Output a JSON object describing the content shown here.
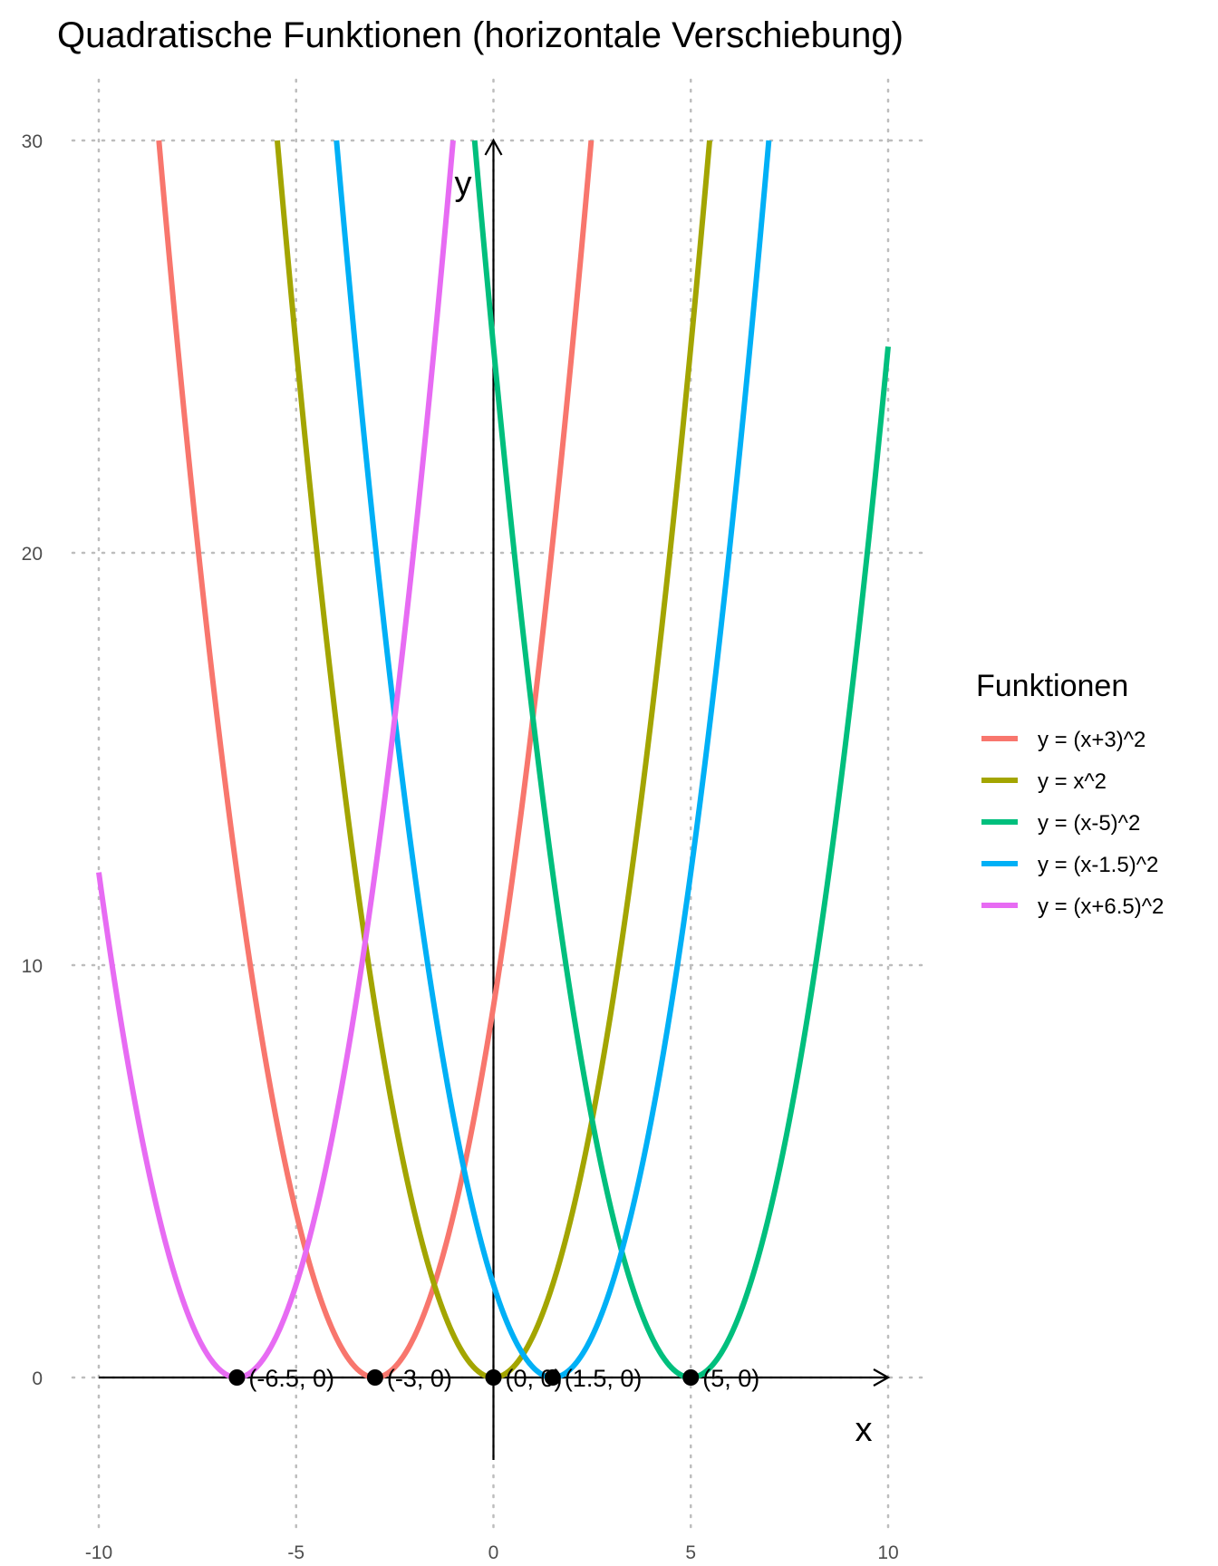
{
  "chart_data": {
    "type": "line",
    "title": "Quadratische Funktionen (horizontale Verschiebung)",
    "xlabel": "x",
    "ylabel": "y",
    "xlim": [
      -10,
      10
    ],
    "ylim": [
      -3,
      30
    ],
    "x_ticks": [
      -10,
      -5,
      0,
      5,
      10
    ],
    "y_ticks": [
      0,
      10,
      20,
      30
    ],
    "grid": "dotted",
    "legend": {
      "title": "Funktionen",
      "placement": "right"
    },
    "series": [
      {
        "name": "y = (x+3)^2",
        "shift": -3,
        "color": "#F8766D"
      },
      {
        "name": "y = x^2",
        "shift": 0,
        "color": "#A3A500"
      },
      {
        "name": "y = (x-5)^2",
        "shift": 5,
        "color": "#00BF7D"
      },
      {
        "name": "y = (x-1.5)^2",
        "shift": 1.5,
        "color": "#00B0F6"
      },
      {
        "name": "y = (x+6.5)^2",
        "shift": -6.5,
        "color": "#E76BF3"
      }
    ],
    "points": [
      {
        "x": -6.5,
        "y": 0,
        "label": "(-6.5, 0)"
      },
      {
        "x": -3,
        "y": 0,
        "label": "(-3, 0)"
      },
      {
        "x": 0,
        "y": 0,
        "label": "(0, 0)"
      },
      {
        "x": 1.5,
        "y": 0,
        "label": "(1.5, 0)"
      },
      {
        "x": 5,
        "y": 0,
        "label": "(5, 0)"
      }
    ]
  }
}
